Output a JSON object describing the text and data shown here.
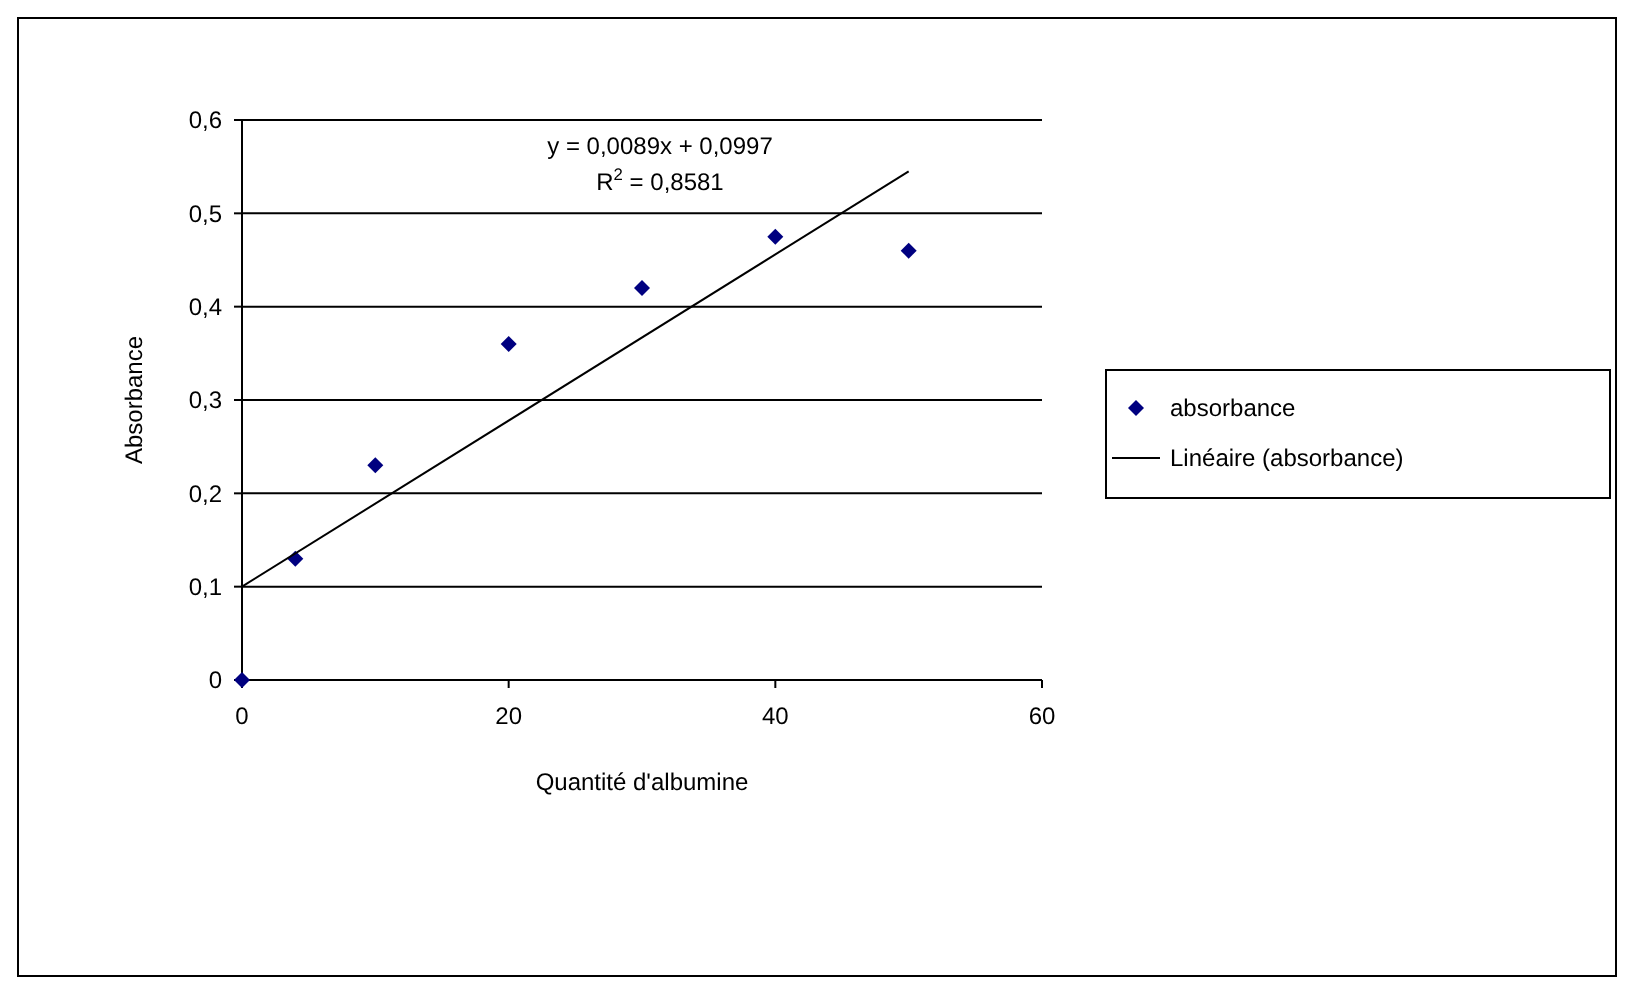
{
  "chart_data": {
    "type": "scatter",
    "xlabel": "Quantité d'albumine",
    "ylabel": "Absorbance",
    "xlim": [
      0,
      60
    ],
    "xticks": [
      0,
      20,
      40,
      60
    ],
    "ylim": [
      0,
      0.6
    ],
    "yticks": [
      0,
      {
        "value": 0.1,
        "label": "0,1"
      },
      {
        "value": 0.2,
        "label": "0,2"
      },
      {
        "value": 0.3,
        "label": "0,3"
      },
      {
        "value": 0.4,
        "label": "0,4"
      },
      {
        "value": 0.5,
        "label": "0,5"
      },
      {
        "value": 0.6,
        "label": "0,6"
      }
    ],
    "grid": "y",
    "legend": "right",
    "series": [
      {
        "name": "absorbance",
        "type": "scatter",
        "color": "#000080",
        "marker": "diamond",
        "x": [
          0,
          4,
          10,
          20,
          30,
          40,
          50
        ],
        "values": [
          0,
          0.13,
          0.23,
          0.36,
          0.42,
          0.475,
          0.46
        ]
      },
      {
        "name": "Linéaire (absorbance)",
        "type": "line",
        "color": "#000000",
        "marker": "none",
        "line_style": "solid",
        "x": [
          0,
          50
        ],
        "values": [
          0.1,
          0.545
        ]
      }
    ],
    "annotations": [
      "y = 0,0089x + 0,0997",
      "R$^{2}$ = 0,8581"
    ]
  }
}
